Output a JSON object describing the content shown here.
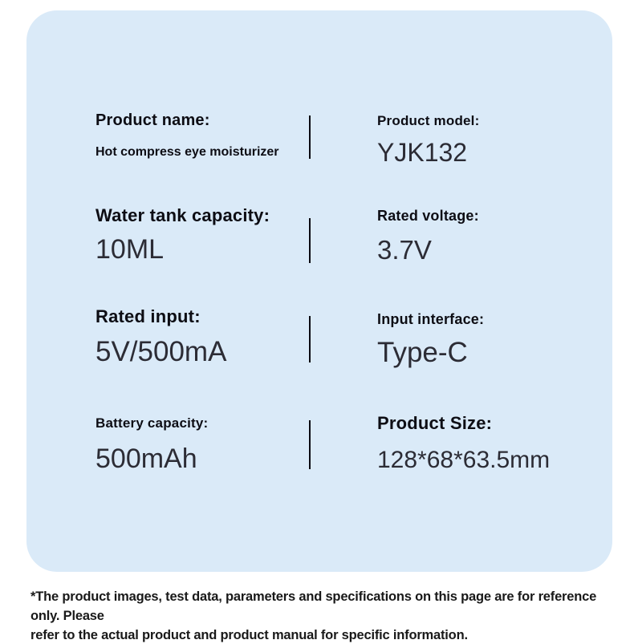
{
  "panel": {
    "bg_color": "#daeaf8",
    "specs": [
      {
        "label": "Product name:",
        "value": "Hot compress eye moisturizer"
      },
      {
        "label": "Product model:",
        "value": "YJK132"
      },
      {
        "label": "Water tank capacity:",
        "value": "10ML"
      },
      {
        "label": "Rated voltage:",
        "value": "3.7V"
      },
      {
        "label": "Rated input:",
        "value": "5V/500mA"
      },
      {
        "label": "Input interface:",
        "value": "Type-C"
      },
      {
        "label": "Battery capacity:",
        "value": "500mAh"
      },
      {
        "label": "Product Size:",
        "value": "128*68*63.5mm"
      }
    ]
  },
  "footer": {
    "line1": "*The product images, test data, parameters and specifications on this page are for reference only. Please",
    "line2": "refer to the actual product and product manual for specific information."
  }
}
